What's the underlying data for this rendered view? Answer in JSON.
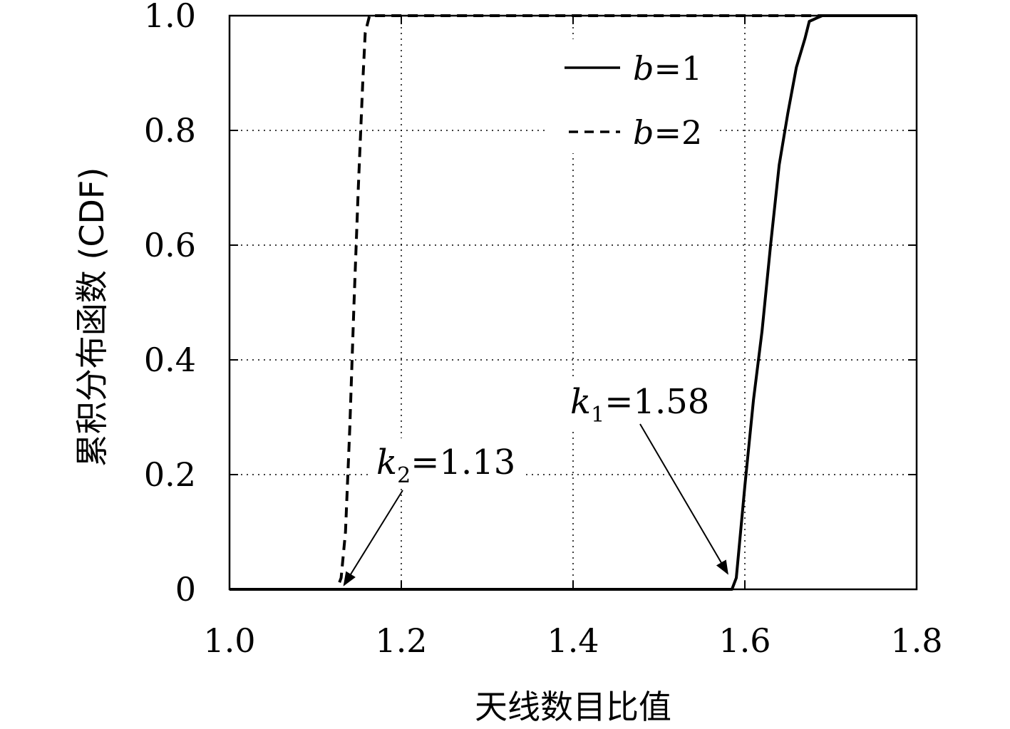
{
  "chart_data": {
    "type": "line",
    "title": "",
    "xlabel": "天线数目比值",
    "ylabel": "累积分布函数 (CDF)",
    "xlim": [
      1.0,
      1.8
    ],
    "ylim": [
      0,
      1.0
    ],
    "x_ticks": [
      "1.0",
      "1.2",
      "1.4",
      "1.6",
      "1.8"
    ],
    "y_ticks": [
      "0",
      "0.2",
      "0.4",
      "0.6",
      "0.8",
      "1.0"
    ],
    "grid": true,
    "legend_position": "top-right",
    "series": [
      {
        "name_var": "b",
        "name_eq": "=1",
        "style": "solid",
        "color": "#000000",
        "points": [
          [
            1.0,
            0
          ],
          [
            1.585,
            0
          ],
          [
            1.59,
            0.02
          ],
          [
            1.6,
            0.18
          ],
          [
            1.61,
            0.33
          ],
          [
            1.62,
            0.45
          ],
          [
            1.63,
            0.6
          ],
          [
            1.64,
            0.74
          ],
          [
            1.65,
            0.83
          ],
          [
            1.66,
            0.91
          ],
          [
            1.67,
            0.96
          ],
          [
            1.675,
            0.99
          ],
          [
            1.69,
            1.0
          ],
          [
            1.8,
            1.0
          ]
        ]
      },
      {
        "name_var": "b",
        "name_eq": "=2",
        "style": "dashed",
        "color": "#000000",
        "points": [
          [
            1.0,
            0
          ],
          [
            1.125,
            0
          ],
          [
            1.13,
            0.02
          ],
          [
            1.135,
            0.1
          ],
          [
            1.14,
            0.28
          ],
          [
            1.145,
            0.5
          ],
          [
            1.15,
            0.7
          ],
          [
            1.155,
            0.88
          ],
          [
            1.158,
            0.97
          ],
          [
            1.163,
            1.0
          ],
          [
            1.8,
            1.0
          ]
        ]
      }
    ],
    "annotations": [
      {
        "var": "k",
        "sub": "2",
        "text": "=1.13",
        "arrow_to": [
          1.13,
          0.0
        ]
      },
      {
        "var": "k",
        "sub": "1",
        "text": "=1.58",
        "arrow_to": [
          1.58,
          0.02
        ]
      }
    ]
  }
}
